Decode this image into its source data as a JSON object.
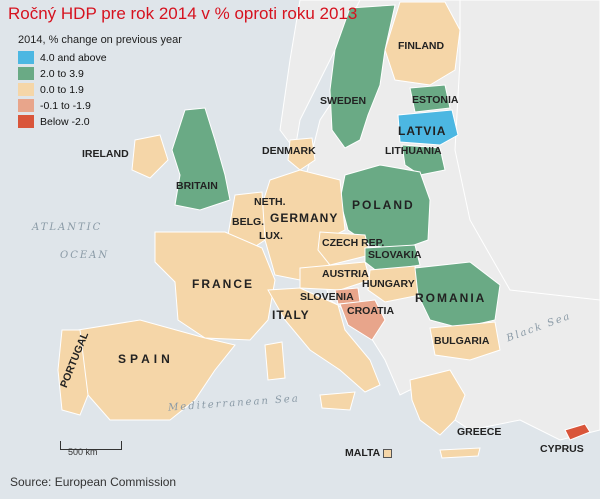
{
  "title": "Ročný HDP pre rok 2014 v % oproti roku 2013",
  "legend": {
    "heading": "2014, % change on previous year",
    "items": [
      {
        "label": "4.0 and above",
        "color": "#4cb7e2"
      },
      {
        "label": "2.0 to 3.9",
        "color": "#6aaa85"
      },
      {
        "label": "0.0 to 1.9",
        "color": "#f5d6a8"
      },
      {
        "label": "-0.1 to -1.9",
        "color": "#e8a58b"
      },
      {
        "label": "Below -2.0",
        "color": "#d9553a"
      }
    ]
  },
  "countries": {
    "finland": "FINLAND",
    "sweden": "SWEDEN",
    "estonia": "ESTONIA",
    "latvia": "LATVIA",
    "lithuania": "LITHUANIA",
    "ireland": "IRELAND",
    "britain": "BRITAIN",
    "denmark": "DENMARK",
    "poland": "POLAND",
    "neth": "NETH.",
    "belg": "BELG.",
    "germany": "GERMANY",
    "lux": "LUX.",
    "czech": "CZECH REP.",
    "slovakia": "SLOVAKIA",
    "austria": "AUSTRIA",
    "hungary": "HUNGARY",
    "france": "FRANCE",
    "romania": "ROMANIA",
    "slovenia": "SLOVENIA",
    "croatia": "CROATIA",
    "italy": "ITALY",
    "bulgaria": "BULGARIA",
    "portugal": "PORTUGAL",
    "spain": "SPAIN",
    "greece": "GREECE",
    "malta": "MALTA",
    "cyprus": "CYPRUS"
  },
  "seas": {
    "atlantic": "ATLANTIC",
    "ocean": "OCEAN",
    "mediterranean": "Mediterranean Sea",
    "black": "Black Sea"
  },
  "scale_label": "500 km",
  "source": "Source: European Commission",
  "colors": {
    "sea": "#dfe5ea",
    "non_eu": "#ececec",
    "border": "#ffffff"
  }
}
